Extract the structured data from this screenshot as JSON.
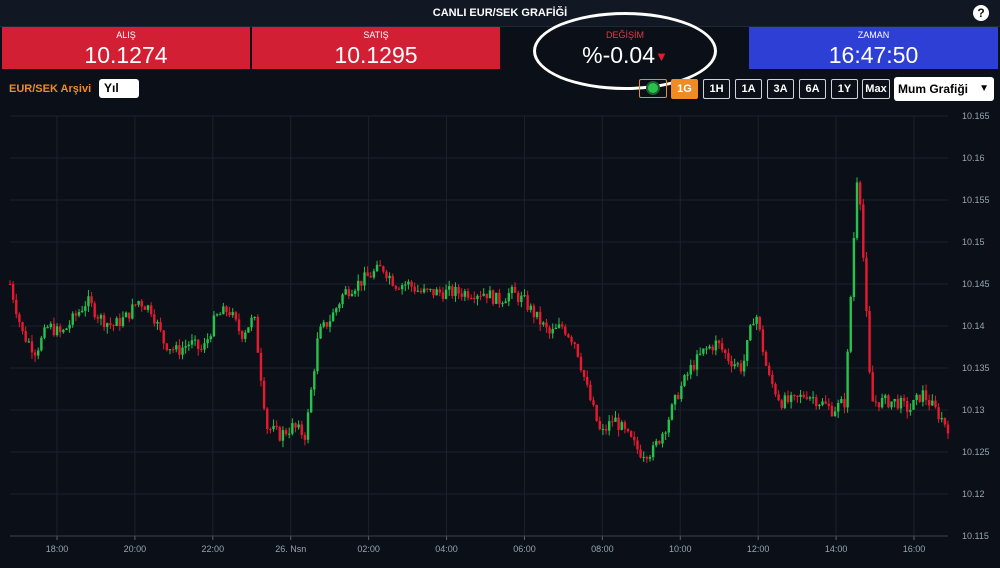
{
  "title": "CANLI EUR/SEK GRAFİĞİ",
  "help_label": "?",
  "stats": {
    "bid": {
      "label": "ALIŞ",
      "value": "10.1274"
    },
    "ask": {
      "label": "SATIŞ",
      "value": "10.1295"
    },
    "change": {
      "label": "DEĞİŞİM",
      "value": "%-0.04"
    },
    "time": {
      "label": "ZAMAN",
      "value": "16:47:50"
    }
  },
  "toolbar": {
    "archive_label": "EUR/SEK Arşivi",
    "period_value": "Yıl",
    "ranges": [
      "1G",
      "1H",
      "1A",
      "3A",
      "6A",
      "1Y",
      "Max"
    ],
    "active_range": "1G",
    "chart_type": "Mum Grafiği"
  },
  "colors": {
    "up": "#27c24c",
    "down": "#e8192f",
    "bid_bg": "#d21f34",
    "time_bg": "#2d3fd4",
    "accent": "#f08a24"
  },
  "chart_data": {
    "type": "candlestick",
    "ylim": [
      10.115,
      10.165
    ],
    "y_ticks": [
      "10.165",
      "10.16",
      "10.155",
      "10.15",
      "10.145",
      "10.14",
      "10.135",
      "10.13",
      "10.125",
      "10.12",
      "10.115"
    ],
    "x_ticks": [
      "18:00",
      "20:00",
      "22:00",
      "26. Nsn",
      "02:00",
      "04:00",
      "06:00",
      "08:00",
      "10:00",
      "12:00",
      "14:00",
      "16:00"
    ],
    "grid": true,
    "price_path": [
      [
        0,
        10.145
      ],
      [
        1,
        10.139
      ],
      [
        2,
        10.137
      ],
      [
        3,
        10.14
      ],
      [
        4,
        10.139
      ],
      [
        5,
        10.141
      ],
      [
        6,
        10.143
      ],
      [
        7,
        10.141
      ],
      [
        8,
        10.14
      ],
      [
        9,
        10.141
      ],
      [
        10,
        10.143
      ],
      [
        11,
        10.142
      ],
      [
        12,
        10.138
      ],
      [
        13,
        10.137
      ],
      [
        14,
        10.138
      ],
      [
        15,
        10.137
      ],
      [
        16,
        10.141
      ],
      [
        17,
        10.142
      ],
      [
        18,
        10.139
      ],
      [
        19,
        10.141
      ],
      [
        20,
        10.128
      ],
      [
        21,
        10.127
      ],
      [
        22,
        10.128
      ],
      [
        23,
        10.127
      ],
      [
        24,
        10.139
      ],
      [
        25,
        10.141
      ],
      [
        26,
        10.144
      ],
      [
        27,
        10.145
      ],
      [
        28,
        10.146
      ],
      [
        29,
        10.147
      ],
      [
        30,
        10.145
      ],
      [
        31,
        10.145
      ],
      [
        32,
        10.144
      ],
      [
        33,
        10.144
      ],
      [
        34,
        10.144
      ],
      [
        35,
        10.144
      ],
      [
        36,
        10.144
      ],
      [
        37,
        10.144
      ],
      [
        38,
        10.143
      ],
      [
        39,
        10.144
      ],
      [
        40,
        10.143
      ],
      [
        41,
        10.141
      ],
      [
        42,
        10.139
      ],
      [
        43,
        10.14
      ],
      [
        44,
        10.138
      ],
      [
        45,
        10.132
      ],
      [
        46,
        10.127
      ],
      [
        47,
        10.129
      ],
      [
        48,
        10.127
      ],
      [
        49,
        10.125
      ],
      [
        50,
        10.125
      ],
      [
        51,
        10.128
      ],
      [
        52,
        10.132
      ],
      [
        53,
        10.135
      ],
      [
        54,
        10.137
      ],
      [
        55,
        10.138
      ],
      [
        56,
        10.136
      ],
      [
        57,
        10.135
      ],
      [
        58,
        10.142
      ],
      [
        59,
        10.134
      ],
      [
        60,
        10.131
      ],
      [
        61,
        10.131
      ],
      [
        62,
        10.132
      ],
      [
        63,
        10.131
      ],
      [
        64,
        10.13
      ],
      [
        65,
        10.131
      ],
      [
        66,
        10.16
      ],
      [
        67,
        10.131
      ],
      [
        68,
        10.131
      ],
      [
        69,
        10.131
      ],
      [
        70,
        10.13
      ],
      [
        71,
        10.132
      ],
      [
        72,
        10.13
      ],
      [
        73,
        10.128
      ]
    ]
  }
}
